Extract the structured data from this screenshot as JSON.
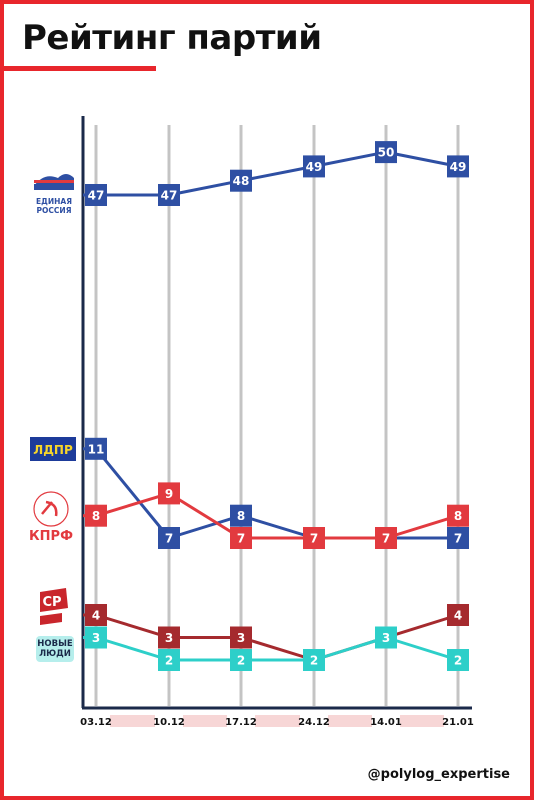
{
  "header": {
    "title": "Рейтинг партий"
  },
  "footer": {
    "handle": "@polylog_expertise"
  },
  "parties": [
    {
      "logo_text": "ЕДИНАЯ РОССИЯ",
      "icon": "bear-icon"
    },
    {
      "logo_text": "ЛДПР",
      "icon": "ldpr-badge"
    },
    {
      "logo_text": "КПРФ",
      "icon": "hammer-sickle-icon"
    },
    {
      "logo_text": "СР",
      "icon": "sr-flag-icon"
    },
    {
      "logo_text": "НОВЫЕ ЛЮДИ",
      "icon": "new-people-icon"
    }
  ],
  "chart_data": {
    "type": "line",
    "title": "Рейтинг партий",
    "xlabel": "",
    "ylabel": "",
    "categories": [
      "03.12",
      "10.12",
      "17.12",
      "24.12",
      "14.01",
      "21.01"
    ],
    "grid": "vertical",
    "series": [
      {
        "name": "ЕДИНАЯ РОССИЯ",
        "color": "#2e4fa3",
        "values": [
          47,
          47,
          48,
          49,
          50,
          49
        ]
      },
      {
        "name": "ЛДПР",
        "color": "#2e4fa3",
        "values": [
          11,
          7,
          8,
          7,
          7,
          7
        ]
      },
      {
        "name": "КПРФ",
        "color": "#e23a3f",
        "values": [
          8,
          9,
          7,
          7,
          7,
          8
        ]
      },
      {
        "name": "СР",
        "color": "#a52a2e",
        "values": [
          4,
          3,
          3,
          2,
          3,
          4
        ]
      },
      {
        "name": "НОВЫЕ ЛЮДИ",
        "color": "#2dcfc9",
        "values": [
          3,
          2,
          2,
          2,
          3,
          2
        ]
      }
    ]
  }
}
